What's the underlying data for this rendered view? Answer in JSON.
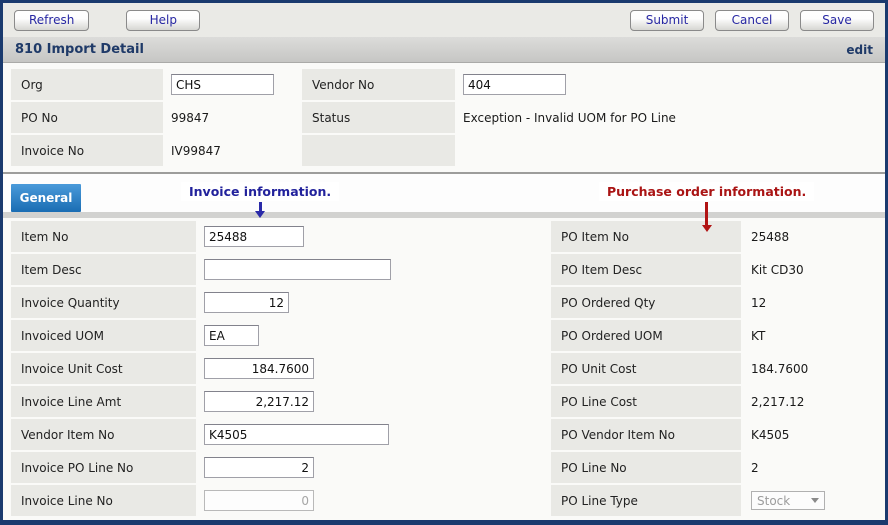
{
  "window": {
    "title": "810 Import Detail",
    "mode_label": "edit"
  },
  "toolbar": {
    "refresh": "Refresh",
    "help": "Help",
    "submit": "Submit",
    "cancel": "Cancel",
    "save": "Save"
  },
  "header_fields": {
    "org": {
      "label": "Org",
      "value": "CHS"
    },
    "vendor_no": {
      "label": "Vendor No",
      "value": "404"
    },
    "po_no": {
      "label": "PO No",
      "value": "99847"
    },
    "status": {
      "label": "Status",
      "value": "Exception - Invalid UOM for PO Line"
    },
    "invoice_no": {
      "label": "Invoice No",
      "value": "IV99847"
    }
  },
  "tabs": [
    {
      "label": "General",
      "active": true
    }
  ],
  "annotations": {
    "invoice": {
      "text": "Invoice information.",
      "color": "#22229c",
      "icon": "down-arrow-icon"
    },
    "purchase_order": {
      "text": "Purchase order information.",
      "color": "#aa1414",
      "icon": "down-arrow-icon"
    }
  },
  "invoice_fields": [
    {
      "label": "Item No",
      "value": "25488"
    },
    {
      "label": "Item Desc",
      "value": ""
    },
    {
      "label": "Invoice Quantity",
      "value": "12"
    },
    {
      "label": "Invoiced UOM",
      "value": "EA"
    },
    {
      "label": "Invoice Unit Cost",
      "value": "184.7600"
    },
    {
      "label": "Invoice Line Amt",
      "value": "2,217.12"
    },
    {
      "label": "Vendor Item No",
      "value": "K4505"
    },
    {
      "label": "Invoice PO Line No",
      "value": "2"
    },
    {
      "label": "Invoice Line No",
      "value": "0",
      "disabled": true
    }
  ],
  "po_fields": [
    {
      "label": "PO Item No",
      "value": "25488"
    },
    {
      "label": "PO Item Desc",
      "value": "Kit CD30"
    },
    {
      "label": "PO Ordered Qty",
      "value": "12"
    },
    {
      "label": "PO Ordered UOM",
      "value": "KT"
    },
    {
      "label": "PO Unit Cost",
      "value": "184.7600"
    },
    {
      "label": "PO Line Cost",
      "value": "2,217.12"
    },
    {
      "label": "PO Vendor Item No",
      "value": "K4505"
    },
    {
      "label": "PO Line No",
      "value": "2"
    },
    {
      "label": "PO Line Type",
      "value": "Stock",
      "disabled": true,
      "control": "select"
    }
  ],
  "colors": {
    "window_border": "#1a3a6e",
    "tab_active": "#1a6db3",
    "label_cell": "#e9e9e5",
    "button_text": "#2727a3",
    "title_text": "#1f3a68"
  }
}
